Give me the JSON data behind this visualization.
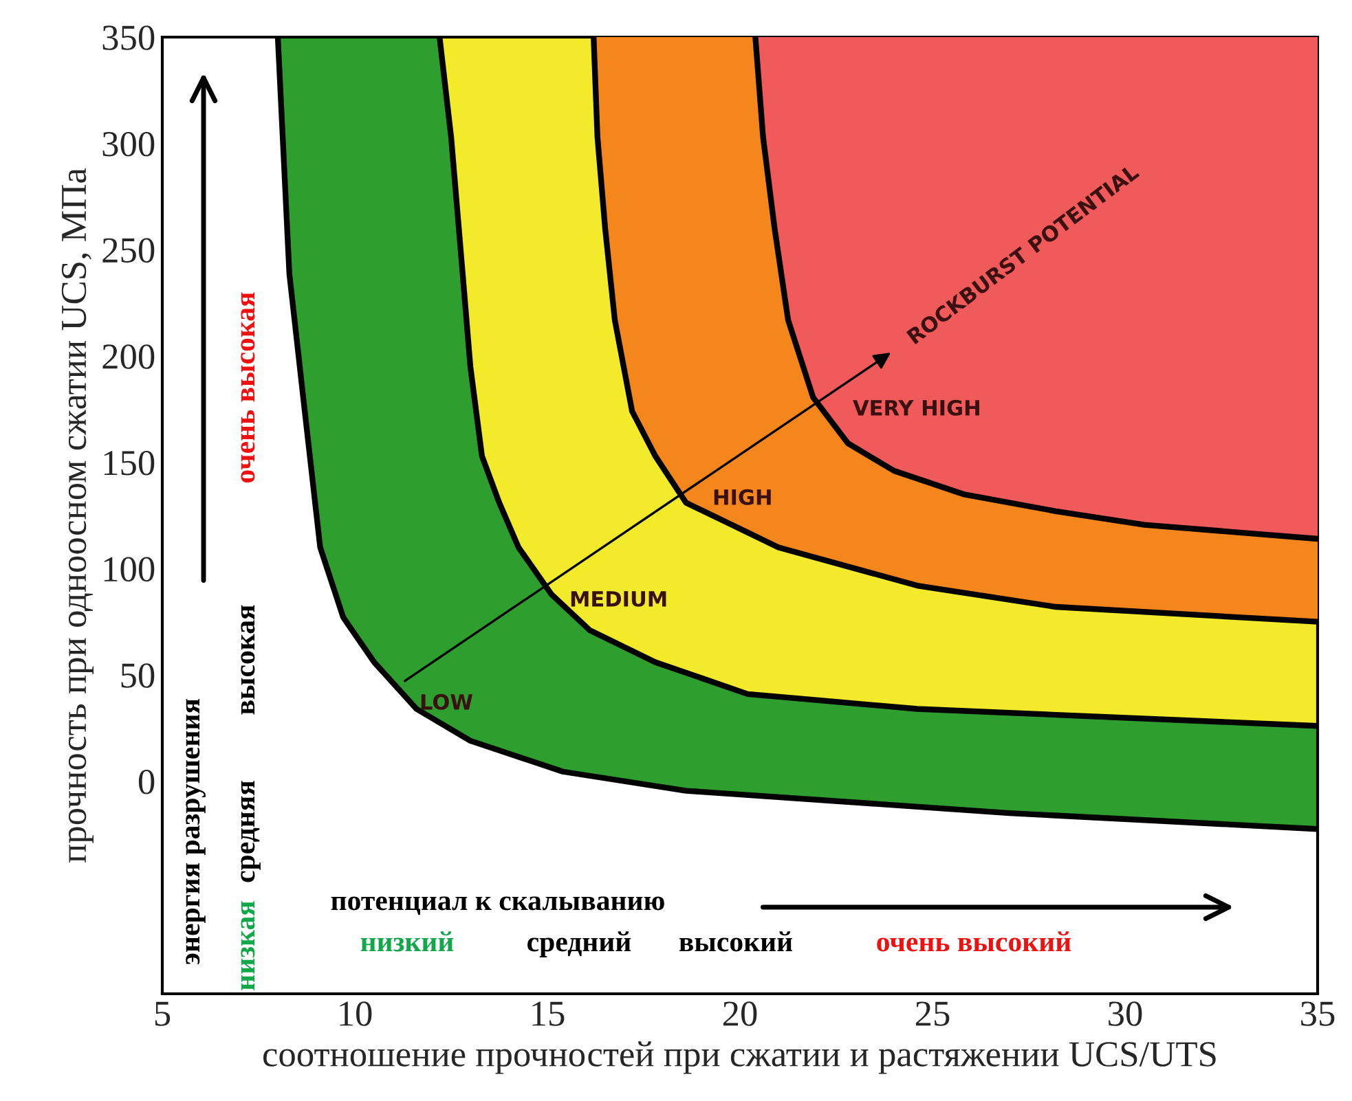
{
  "chart_data": {
    "type": "line",
    "xlabel": "соотношение прочностей при сжатии и растяжении UCS/UTS",
    "ylabel": "прочность при одноосном сжатии UCS, МПа",
    "xlim": [
      5,
      35
    ],
    "xticks": [
      5,
      10,
      15,
      20,
      25,
      30,
      35
    ],
    "ylim": [
      -100,
      350
    ],
    "yticks": [
      0,
      50,
      100,
      150,
      200,
      250,
      300,
      350
    ],
    "grid": false,
    "series": [
      {
        "color": "#000000",
        "x": [
          8.0,
          8.3,
          8.7,
          9.1,
          9.7,
          10.5,
          11.6,
          13.0,
          15.4,
          18.6,
          27.0,
          35
        ],
        "values": [
          350,
          238.6,
          174,
          110,
          77,
          56,
          34,
          19,
          4.5,
          -4.5,
          -15,
          -22.5
        ]
      },
      {
        "color": "#000000",
        "x": [
          12.2,
          12.5,
          12.8,
          13.0,
          13.3,
          13.75,
          14.25,
          15.1,
          16.1,
          17.8,
          20.2,
          24.6,
          35
        ],
        "values": [
          350,
          303,
          238.6,
          195,
          153,
          131,
          110,
          88,
          71,
          56,
          41,
          34,
          26
        ]
      },
      {
        "color": "#000000",
        "x": [
          16.2,
          16.3,
          16.5,
          16.75,
          17.2,
          17.8,
          18.6,
          21.0,
          24.6,
          28.2,
          35
        ],
        "values": [
          350,
          303,
          260,
          217,
          174,
          153,
          131,
          110,
          92,
          82,
          75
        ]
      },
      {
        "color": "#000000",
        "x": [
          20.4,
          20.6,
          20.9,
          21.25,
          21.9,
          22.8,
          24.0,
          25.8,
          28.2,
          30.5,
          35
        ],
        "values": [
          350,
          303,
          260,
          217,
          180.5,
          159,
          146,
          135,
          127,
          120.6,
          114
        ]
      }
    ],
    "annotations": [
      "LOW",
      "MEDIUM",
      "HIGH",
      "VERY HIGH",
      "ROCKBURST POTENTIAL",
      "энергия разрушения",
      "низкая",
      "средняя",
      "высокая",
      "очень высокая",
      "потенциал к скалыванию",
      "низкий",
      "средний",
      "высокий",
      "очень высокий"
    ]
  }
}
